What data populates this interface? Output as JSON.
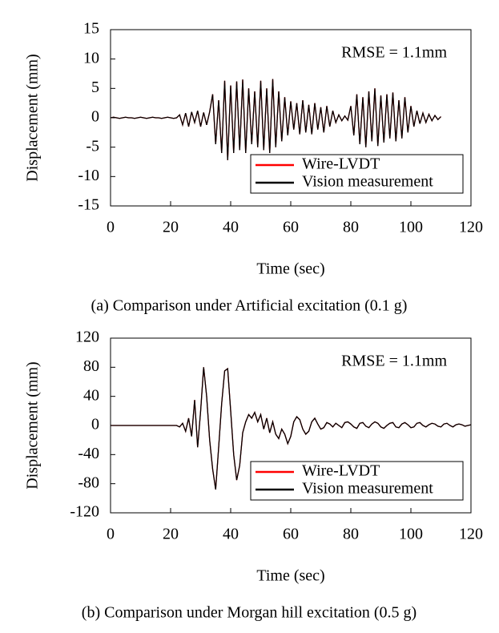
{
  "chart_data": [
    {
      "type": "line",
      "caption": "(a) Comparison under Artificial excitation (0.1 g)",
      "xlabel": "Time (sec)",
      "ylabel": "Displacement (mm)",
      "annotation": "RMSE = 1.1mm",
      "legend": "lower right",
      "xlim": [
        0,
        120
      ],
      "xticks": [
        0,
        20,
        40,
        60,
        80,
        100,
        120
      ],
      "ylim": [
        -15,
        15
      ],
      "yticks": [
        -15,
        -10,
        -5,
        0,
        5,
        10,
        15
      ],
      "x": [
        0,
        1,
        2,
        3,
        4,
        5,
        6,
        7,
        8,
        9,
        10,
        11,
        12,
        13,
        14,
        15,
        16,
        17,
        18,
        19,
        20,
        21,
        22,
        23,
        24,
        25,
        26,
        27,
        28,
        29,
        30,
        31,
        32,
        33,
        34,
        35,
        36,
        37,
        38,
        39,
        40,
        41,
        42,
        43,
        44,
        45,
        46,
        47,
        48,
        49,
        50,
        51,
        52,
        53,
        54,
        55,
        56,
        57,
        58,
        59,
        60,
        61,
        62,
        63,
        64,
        65,
        66,
        67,
        68,
        69,
        70,
        71,
        72,
        73,
        74,
        75,
        76,
        77,
        78,
        79,
        80,
        81,
        82,
        83,
        84,
        85,
        86,
        87,
        88,
        89,
        90,
        91,
        92,
        93,
        94,
        95,
        96,
        97,
        98,
        99,
        100,
        101,
        102,
        103,
        104,
        105,
        106,
        107,
        108,
        109,
        110
      ],
      "series": [
        {
          "name": "Wire-LVDT",
          "color": "#ff0000",
          "values": [
            0,
            0.1,
            0,
            -0.1,
            0,
            0.1,
            0,
            0,
            -0.1,
            0,
            0.1,
            0,
            -0.1,
            0,
            0.1,
            0,
            0,
            -0.1,
            0,
            0.1,
            0,
            -0.1,
            0,
            0.5,
            -1.2,
            0.8,
            -1.5,
            1,
            -0.8,
            1.2,
            -1.5,
            0.9,
            -1.2,
            1,
            4,
            -4.5,
            3,
            -6,
            6.3,
            -7.2,
            5.5,
            -6,
            6.2,
            -5.5,
            6.5,
            -6,
            5,
            -4.5,
            4.5,
            -5,
            6.3,
            -5.5,
            5,
            -6,
            6.6,
            -5,
            4.5,
            -4,
            3.5,
            -3,
            2.8,
            -2,
            2.5,
            -2.8,
            3,
            -2.5,
            2.2,
            -2.8,
            2.5,
            -2,
            1.8,
            -2.5,
            2,
            -1.5,
            1.2,
            -0.8,
            0.5,
            -0.5,
            0.3,
            -0.4,
            2,
            -3,
            4,
            -4.5,
            3.5,
            -5,
            4.5,
            -4,
            5,
            -4.8,
            3.8,
            -4.2,
            4,
            -3.5,
            4.3,
            -4,
            3,
            -3.5,
            3.5,
            -2.5,
            2,
            -1.5,
            1.2,
            -1,
            0.8,
            -0.8,
            0.6,
            -0.5,
            0.4,
            -0.3,
            0.2
          ]
        },
        {
          "name": "Vision measurement",
          "color": "#000000",
          "values": [
            0,
            0.1,
            0,
            -0.1,
            0,
            0.1,
            0,
            0,
            -0.1,
            0,
            0.1,
            0,
            -0.1,
            0,
            0.1,
            0,
            0,
            -0.1,
            0,
            0.1,
            0,
            -0.1,
            0,
            0.5,
            -1.2,
            0.8,
            -1.5,
            1,
            -0.8,
            1.2,
            -1.5,
            0.9,
            -1.2,
            1,
            4,
            -4.5,
            3,
            -6,
            6.3,
            -7.2,
            5.5,
            -6,
            6.2,
            -5.5,
            6.5,
            -6,
            5,
            -4.5,
            4.5,
            -5,
            6.3,
            -5.5,
            5,
            -6,
            6.6,
            -5,
            4.5,
            -4,
            3.5,
            -3,
            2.8,
            -2,
            2.5,
            -2.8,
            3,
            -2.5,
            2.2,
            -2.8,
            2.5,
            -2,
            1.8,
            -2.5,
            2,
            -1.5,
            1.2,
            -0.8,
            0.5,
            -0.5,
            0.3,
            -0.4,
            2,
            -3,
            4,
            -4.5,
            3.5,
            -5,
            4.5,
            -4,
            5,
            -4.8,
            3.8,
            -4.2,
            4,
            -3.5,
            4.3,
            -4,
            3,
            -3.5,
            3.5,
            -2.5,
            2,
            -1.5,
            1.2,
            -1,
            0.8,
            -0.8,
            0.6,
            -0.5,
            0.4,
            -0.3,
            0.2
          ]
        }
      ]
    },
    {
      "type": "line",
      "caption": "(b) Comparison under Morgan hill excitation (0.5 g)",
      "xlabel": "Time (sec)",
      "ylabel": "Displacement (mm)",
      "annotation": "RMSE = 1.1mm",
      "legend": "lower right",
      "xlim": [
        0,
        120
      ],
      "xticks": [
        0,
        20,
        40,
        60,
        80,
        100,
        120
      ],
      "ylim": [
        -120,
        120
      ],
      "yticks": [
        -120,
        -80,
        -40,
        0,
        40,
        80,
        120
      ],
      "x": [
        0,
        1,
        2,
        3,
        4,
        5,
        6,
        7,
        8,
        9,
        10,
        11,
        12,
        13,
        14,
        15,
        16,
        17,
        18,
        19,
        20,
        21,
        22,
        23,
        24,
        25,
        26,
        27,
        28,
        29,
        30,
        31,
        32,
        33,
        34,
        35,
        36,
        37,
        38,
        39,
        40,
        41,
        42,
        43,
        44,
        45,
        46,
        47,
        48,
        49,
        50,
        51,
        52,
        53,
        54,
        55,
        56,
        57,
        58,
        59,
        60,
        61,
        62,
        63,
        64,
        65,
        66,
        67,
        68,
        69,
        70,
        71,
        72,
        73,
        74,
        75,
        76,
        77,
        78,
        79,
        80,
        81,
        82,
        83,
        84,
        85,
        86,
        87,
        88,
        89,
        90,
        91,
        92,
        93,
        94,
        95,
        96,
        97,
        98,
        99,
        100,
        101,
        102,
        103,
        104,
        105,
        106,
        107,
        108,
        109,
        110,
        111,
        112,
        113,
        114,
        115,
        116,
        117,
        118,
        119,
        120
      ],
      "series": [
        {
          "name": "Wire-LVDT",
          "color": "#ff0000",
          "values": [
            0,
            0,
            0,
            0,
            0,
            0,
            0,
            0,
            0,
            0,
            0,
            0,
            0,
            0,
            0,
            0,
            0,
            0,
            0,
            0,
            0,
            0,
            0,
            -2,
            3,
            -8,
            10,
            -15,
            35,
            -30,
            20,
            80,
            40,
            -20,
            -60,
            -88,
            -30,
            30,
            75,
            78,
            20,
            -40,
            -75,
            -55,
            -10,
            5,
            15,
            10,
            18,
            5,
            15,
            -5,
            10,
            -10,
            5,
            -12,
            -18,
            -5,
            -12,
            -25,
            -15,
            5,
            12,
            8,
            -5,
            -12,
            -8,
            5,
            10,
            2,
            -5,
            -3,
            4,
            2,
            -2,
            3,
            0,
            -3,
            4,
            5,
            2,
            -2,
            -4,
            3,
            4,
            -1,
            -3,
            2,
            5,
            3,
            -2,
            -4,
            0,
            3,
            4,
            -2,
            -3,
            2,
            4,
            1,
            -3,
            -2,
            3,
            4,
            0,
            -2,
            1,
            3,
            2,
            -1,
            -2,
            2,
            3,
            0,
            -2,
            1,
            2,
            1,
            -1,
            0,
            1
          ]
        },
        {
          "name": "Vision measurement",
          "color": "#000000",
          "values": [
            0,
            0,
            0,
            0,
            0,
            0,
            0,
            0,
            0,
            0,
            0,
            0,
            0,
            0,
            0,
            0,
            0,
            0,
            0,
            0,
            0,
            0,
            0,
            -2,
            3,
            -8,
            10,
            -15,
            35,
            -30,
            20,
            80,
            40,
            -20,
            -60,
            -88,
            -30,
            30,
            75,
            78,
            20,
            -40,
            -75,
            -55,
            -10,
            5,
            15,
            10,
            18,
            5,
            15,
            -5,
            10,
            -10,
            5,
            -12,
            -18,
            -5,
            -12,
            -25,
            -15,
            5,
            12,
            8,
            -5,
            -12,
            -8,
            5,
            10,
            2,
            -5,
            -3,
            4,
            2,
            -2,
            3,
            0,
            -3,
            4,
            5,
            2,
            -2,
            -4,
            3,
            4,
            -1,
            -3,
            2,
            5,
            3,
            -2,
            -4,
            0,
            3,
            4,
            -2,
            -3,
            2,
            4,
            1,
            -3,
            -2,
            3,
            4,
            0,
            -2,
            1,
            3,
            2,
            -1,
            -2,
            2,
            3,
            0,
            -2,
            1,
            2,
            1,
            -1,
            0,
            1
          ]
        }
      ]
    }
  ]
}
